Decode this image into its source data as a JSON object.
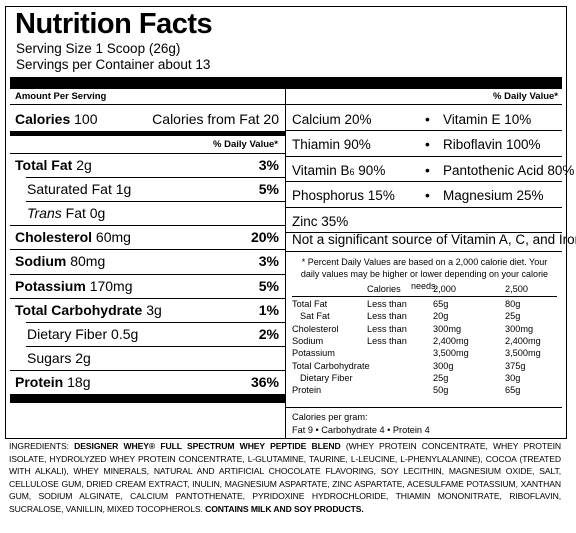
{
  "title": "Nutrition Facts",
  "serving_size": "Serving Size 1 Scoop (26g)",
  "servings_per": "Servings per Container about 13",
  "amount_per_serving": "Amount Per Serving",
  "dv_header": "% Daily Value*",
  "calories": {
    "label": "Calories",
    "value": "100",
    "fat_label": "Calories from Fat",
    "fat_value": "20"
  },
  "left_rows": [
    {
      "label": "Total Fat",
      "value": "2g",
      "dv": "3%"
    },
    {
      "label": "Saturated Fat",
      "value": "1g",
      "dv": "5%"
    },
    {
      "label": "Trans",
      "rest": "Fat",
      "value": "0g",
      "dv": ""
    },
    {
      "label": "Cholesterol",
      "value": "60mg",
      "dv": "20%"
    },
    {
      "label": "Sodium",
      "value": "80mg",
      "dv": "3%"
    },
    {
      "label": "Potassium",
      "value": "170mg",
      "dv": "5%"
    },
    {
      "label": "Total Carbohydrate",
      "value": "3g",
      "dv": "1%"
    },
    {
      "label": "Dietary Fiber",
      "value": "0.5g",
      "dv": "2%"
    },
    {
      "label": "Sugars",
      "value": "2g",
      "dv": ""
    },
    {
      "label": "Protein",
      "value": "18g",
      "dv": "36%"
    }
  ],
  "vitamins": [
    {
      "a": "Calcium 20%",
      "b": "Vitamin E 10%"
    },
    {
      "a": "Thiamin 90%",
      "b": "Riboflavin 100%"
    },
    {
      "a": "Vitamin B",
      "a_sub": "6",
      "a_rest": " 90%",
      "b": "Pantothenic Acid 80%"
    },
    {
      "a": "Phosphorus 15%",
      "b": "Magnesium 25%"
    },
    {
      "a": "Zinc 35%"
    }
  ],
  "not_significant": "Not a significant source of Vitamin A, C, and Iron.",
  "footnote": "* Percent Daily Values are based on a 2,000 calorie diet. Your daily values may be higher or lower depending on your calorie needs.",
  "table": {
    "header": [
      "Calories",
      "2,000",
      "2,500"
    ],
    "rows": [
      [
        "Total Fat",
        "Less than",
        "65g",
        "80g"
      ],
      [
        "Sat Fat",
        "Less than",
        "20g",
        "25g"
      ],
      [
        "Cholesterol",
        "Less than",
        "300mg",
        "300mg"
      ],
      [
        "Sodium",
        "Less than",
        "2,400mg",
        "2,400mg"
      ],
      [
        "Potassium",
        "",
        "3,500mg",
        "3,500mg"
      ],
      [
        "Total Carbohydrate",
        "",
        "300g",
        "375g"
      ],
      [
        "Dietary Fiber",
        "",
        "25g",
        "30g"
      ],
      [
        "Protein",
        "",
        "50g",
        "65g"
      ]
    ]
  },
  "calories_per_gram": "Calories per gram:",
  "cpg_values": "Fat 9 • Carbohydrate 4 • Protein 4",
  "bullet": "•",
  "ingredients": {
    "lead": "INGREDIENTS:",
    "blend": "DESIGNER WHEY® FULL SPECTRUM WHEY PEPTIDE BLEND",
    "body": "(WHEY PROTEIN CONCENTRATE, WHEY PROTEIN ISOLATE, HYDROLYZED WHEY PROTEIN CONCENTRATE, L-GLUTAMINE, TAURINE, L-LEUCINE, L-PHENYLALANINE), COCOA (TREATED WITH ALKALI), WHEY MINERALS, NATURAL AND ARTIFICIAL CHOCOLATE FLAVORING, SOY LECITHIN, MAGNESIUM OXIDE, SALT, CELLULOSE GUM, DRIED CREAM EXTRACT, INULIN, MAGNESIUM ASPARTATE, ZINC ASPARTATE, ACESULFAME POTASSIUM, XANTHAN GUM, SODIUM ALGINATE, CALCIUM PANTOTHENATE, PYRIDOXINE HYDROCHLORIDE, THIAMIN MONONITRATE, RIBOFLAVIN, SUCRALOSE, VANILLIN, MIXED TOCOPHEROLS.",
    "contains": "CONTAINS MILK AND SOY PRODUCTS."
  }
}
